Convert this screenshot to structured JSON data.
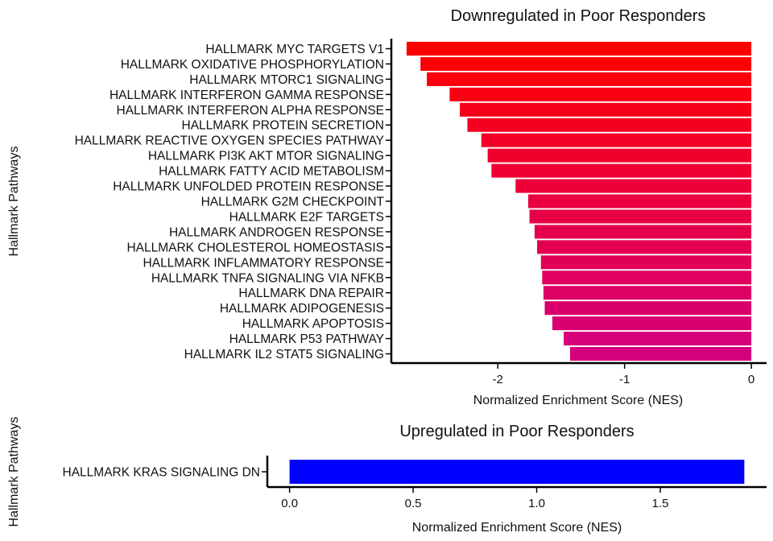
{
  "chart_data": [
    {
      "type": "bar",
      "orientation": "horizontal",
      "title": "Downregulated in Poor Responders",
      "xlabel": "Normalized Enrichment Score (NES)",
      "ylabel": "Hallmark Pathways",
      "categories": [
        "HALLMARK MYC TARGETS V1",
        "HALLMARK OXIDATIVE PHOSPHORYLATION",
        "HALLMARK MTORC1 SIGNALING",
        "HALLMARK INTERFERON GAMMA RESPONSE",
        "HALLMARK INTERFERON ALPHA RESPONSE",
        "HALLMARK PROTEIN SECRETION",
        "HALLMARK REACTIVE OXYGEN SPECIES PATHWAY",
        "HALLMARK PI3K AKT MTOR SIGNALING",
        "HALLMARK FATTY ACID METABOLISM",
        "HALLMARK UNFOLDED PROTEIN RESPONSE",
        "HALLMARK G2M CHECKPOINT",
        "HALLMARK E2F TARGETS",
        "HALLMARK ANDROGEN RESPONSE",
        "HALLMARK CHOLESTEROL HOMEOSTASIS",
        "HALLMARK INFLAMMATORY RESPONSE",
        "HALLMARK TNFA SIGNALING VIA NFKB",
        "HALLMARK DNA REPAIR",
        "HALLMARK ADIPOGENESIS",
        "HALLMARK APOPTOSIS",
        "HALLMARK P53 PATHWAY",
        "HALLMARK IL2 STAT5 SIGNALING"
      ],
      "values": [
        -2.72,
        -2.61,
        -2.56,
        -2.38,
        -2.3,
        -2.24,
        -2.13,
        -2.08,
        -2.05,
        -1.86,
        -1.76,
        -1.75,
        -1.71,
        -1.69,
        -1.66,
        -1.65,
        -1.64,
        -1.63,
        -1.57,
        -1.48,
        -1.43
      ],
      "xlim": [
        -2.84,
        0.12
      ],
      "xticks": [
        -2,
        -1,
        0
      ],
      "xtick_labels": [
        "-2",
        "-1",
        "0"
      ],
      "color_gradient": [
        "#ff0000",
        "#d4007e"
      ]
    },
    {
      "type": "bar",
      "orientation": "horizontal",
      "title": "Upregulated in Poor Responders",
      "xlabel": "Normalized Enrichment Score (NES)",
      "ylabel": "Hallmark Pathways",
      "categories": [
        "HALLMARK KRAS SIGNALING DN"
      ],
      "values": [
        1.84
      ],
      "xlim": [
        -0.09,
        1.93
      ],
      "xticks": [
        0,
        0.5,
        1,
        1.5
      ],
      "xtick_labels": [
        "0.0",
        "0.5",
        "1.0",
        "1.5"
      ],
      "color": "#0000ff"
    }
  ]
}
